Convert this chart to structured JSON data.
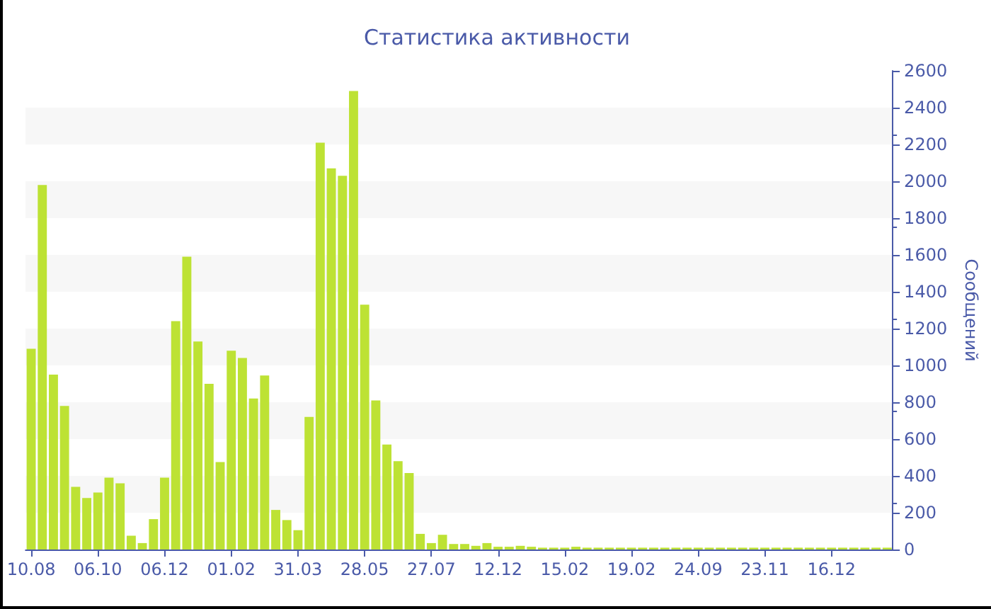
{
  "chart_data": {
    "type": "bar",
    "title": "Статистика активности",
    "ylabel": "Сообщений",
    "categories": [
      "10.08",
      null,
      null,
      null,
      null,
      null,
      "06.10",
      null,
      null,
      null,
      null,
      null,
      "06.12",
      null,
      null,
      null,
      null,
      null,
      "01.02",
      null,
      null,
      null,
      null,
      null,
      "31.03",
      null,
      null,
      null,
      null,
      null,
      "28.05",
      null,
      null,
      null,
      null,
      null,
      "27.07",
      null,
      null,
      null,
      null,
      null,
      "12.12",
      null,
      null,
      null,
      null,
      null,
      "15.02",
      null,
      null,
      null,
      null,
      null,
      "19.02",
      null,
      null,
      null,
      null,
      null,
      "24.09",
      null,
      null,
      null,
      null,
      null,
      "23.11",
      null,
      null,
      null,
      null,
      null,
      "16.12",
      null,
      null,
      null,
      null,
      null
    ],
    "values": [
      1090,
      1980,
      950,
      780,
      340,
      280,
      310,
      390,
      360,
      75,
      35,
      165,
      390,
      1240,
      1590,
      1130,
      900,
      475,
      1080,
      1040,
      820,
      945,
      215,
      160,
      105,
      720,
      2210,
      2070,
      2030,
      2490,
      1330,
      810,
      570,
      480,
      415,
      85,
      35,
      80,
      30,
      30,
      20,
      35,
      15,
      15,
      20,
      15,
      10,
      10,
      10,
      15,
      10,
      10,
      10,
      10,
      10,
      10,
      10,
      10,
      10,
      10,
      10,
      10,
      10,
      10,
      10,
      10,
      10,
      10,
      10,
      10,
      10,
      10,
      10,
      10,
      10,
      10,
      10,
      10
    ],
    "color": "#bde234",
    "ylim": [
      0,
      2600
    ],
    "yticks": [
      0,
      200,
      400,
      600,
      800,
      1000,
      1200,
      1400,
      1600,
      1800,
      2000,
      2200,
      2400,
      2600
    ]
  }
}
